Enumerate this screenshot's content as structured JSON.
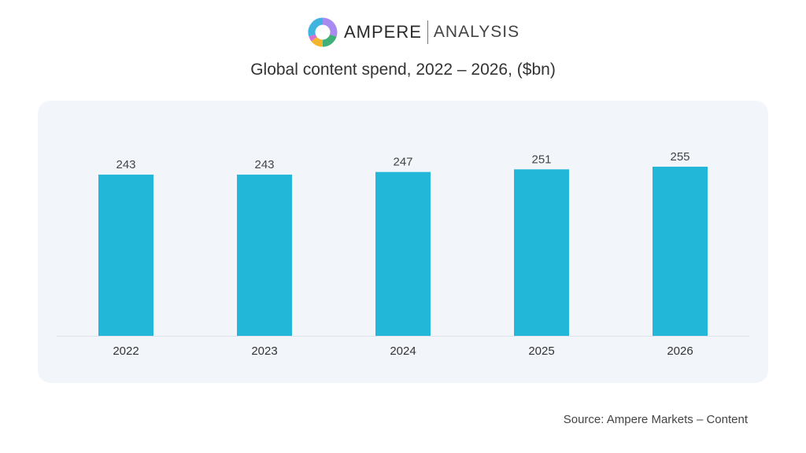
{
  "logo": {
    "brand": "AMPERE",
    "suffix": "ANALYSIS"
  },
  "source": "Source: Ampere Markets – Content",
  "colors": {
    "bar": "#22b7d9",
    "card": "#f2f6fb",
    "axis": "#dde3ea"
  },
  "chart_data": {
    "type": "bar",
    "title": "Global content spend, 2022 – 2026, ($bn)",
    "categories": [
      "2022",
      "2023",
      "2024",
      "2025",
      "2026"
    ],
    "values": [
      243,
      243,
      247,
      251,
      255
    ],
    "data_labels": [
      "243",
      "243",
      "247",
      "251",
      "255"
    ],
    "xlabel": "",
    "ylabel": "",
    "ylim": [
      0,
      300
    ],
    "grid": false,
    "legend": "none"
  }
}
